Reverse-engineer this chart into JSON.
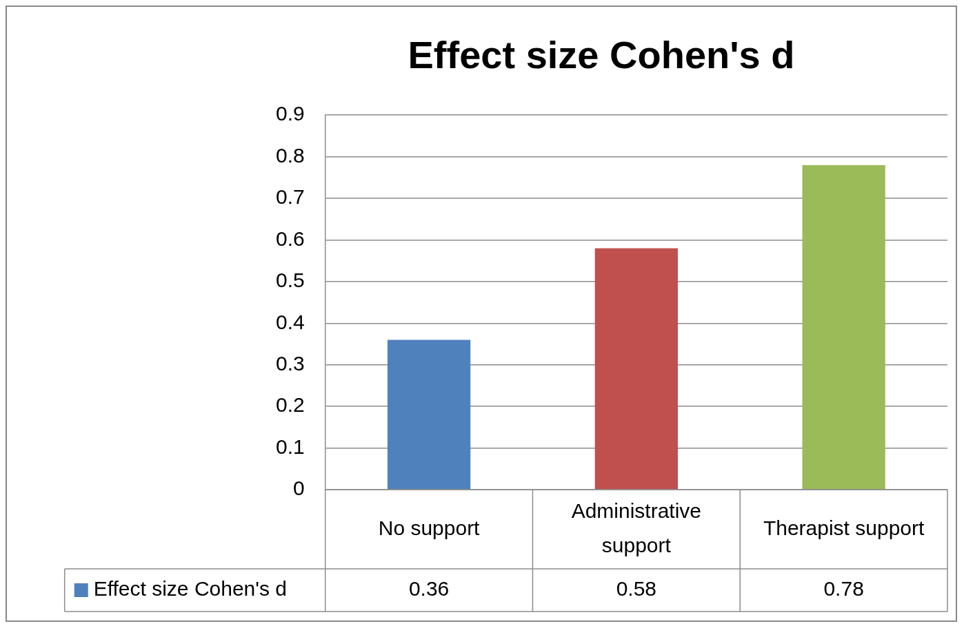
{
  "chart_data": {
    "type": "bar",
    "title": "Effect size Cohen's d",
    "categories": [
      "No support",
      "Administrative support",
      "Therapist support"
    ],
    "series": [
      {
        "name": "Effect size Cohen's d",
        "color": "#4f81bd",
        "colors": [
          "#4f81bd",
          "#c0504d",
          "#9bbb59"
        ],
        "values": [
          0.36,
          0.58,
          0.78
        ]
      }
    ],
    "ylim": [
      0,
      0.9
    ],
    "yticks": [
      0,
      0.1,
      0.2,
      0.3,
      0.4,
      0.5,
      0.6,
      0.7,
      0.8,
      0.9
    ],
    "grid": "y",
    "legend": "bottom left",
    "data_labels": true
  }
}
